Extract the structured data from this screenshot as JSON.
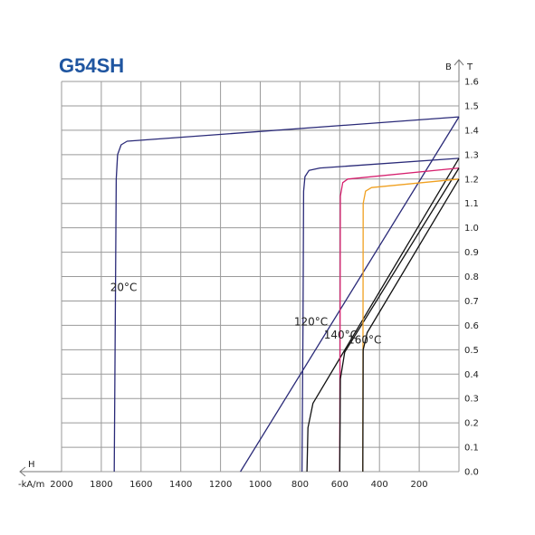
{
  "chart_data": {
    "type": "line",
    "title": "G54SH",
    "xlabel_symbol": "H",
    "xlabel_unit": "-kA/m",
    "ylabel_symbol": "B",
    "ylabel_unit": "T",
    "xlim": [
      2000,
      0
    ],
    "ylim": [
      0,
      1.6
    ],
    "x_ticks": [
      "2000",
      "1800",
      "1600",
      "1400",
      "1200",
      "1000",
      "800",
      "600",
      "400",
      "200"
    ],
    "x_tick_values": [
      2000,
      1800,
      1600,
      1400,
      1200,
      1000,
      800,
      600,
      400,
      200
    ],
    "y_ticks": [
      "0.0",
      "0.1",
      "0.2",
      "0.3",
      "0.4",
      "0.5",
      "0.6",
      "0.7",
      "0.8",
      "0.9",
      "1.0",
      "1.1",
      "1.2",
      "1.3",
      "1.4",
      "1.5",
      "1.6"
    ],
    "grid": true,
    "colors": {
      "title": "#1f55a0",
      "grid": "#9a9a9a",
      "navy": "#2a2a78",
      "magenta": "#d6206e",
      "orange": "#f0a020",
      "black": "#111111"
    },
    "series": [
      {
        "name": "20°C",
        "kind": "B",
        "color": "#2a2a78",
        "points": [
          [
            1735,
            0.0
          ],
          [
            1730,
            0.6
          ],
          [
            1725,
            1.2
          ],
          [
            1718,
            1.3
          ],
          [
            1700,
            1.34
          ],
          [
            1670,
            1.355
          ],
          [
            0,
            1.455
          ]
        ]
      },
      {
        "name": "",
        "kind": "J",
        "color": "#2a2a78",
        "points": [
          [
            1100,
            0.0
          ],
          [
            0,
            1.455
          ]
        ]
      },
      {
        "name": "120°C",
        "kind": "B",
        "color": "#2a2a78",
        "points": [
          [
            790,
            0.0
          ],
          [
            785,
            0.6
          ],
          [
            782,
            1.15
          ],
          [
            775,
            1.21
          ],
          [
            755,
            1.235
          ],
          [
            700,
            1.245
          ],
          [
            0,
            1.285
          ]
        ]
      },
      {
        "name": "",
        "kind": "J",
        "color": "#111111",
        "points": [
          [
            765,
            0.0
          ],
          [
            760,
            0.18
          ],
          [
            735,
            0.28
          ],
          [
            0,
            1.285
          ]
        ]
      },
      {
        "name": "140°C",
        "kind": "B",
        "color": "#d6206e",
        "points": [
          [
            600,
            0.0
          ],
          [
            598,
            0.6
          ],
          [
            597,
            1.13
          ],
          [
            585,
            1.185
          ],
          [
            560,
            1.2
          ],
          [
            0,
            1.245
          ]
        ]
      },
      {
        "name": "",
        "kind": "J",
        "color": "#111111",
        "points": [
          [
            600,
            0.0
          ],
          [
            597,
            0.38
          ],
          [
            575,
            0.49
          ],
          [
            0,
            1.245
          ]
        ]
      },
      {
        "name": "160°C",
        "kind": "B",
        "color": "#f0a020",
        "points": [
          [
            484,
            0.0
          ],
          [
            483,
            0.6
          ],
          [
            482,
            1.1
          ],
          [
            470,
            1.15
          ],
          [
            440,
            1.165
          ],
          [
            0,
            1.2
          ]
        ]
      },
      {
        "name": "",
        "kind": "J",
        "color": "#111111",
        "points": [
          [
            484,
            0.0
          ],
          [
            482,
            0.5
          ],
          [
            462,
            0.57
          ],
          [
            0,
            1.2
          ]
        ]
      }
    ],
    "annotations": [
      {
        "text": "20°C",
        "x": 1755,
        "y": 0.74
      },
      {
        "text": "120°C",
        "x": 830,
        "y": 0.6
      },
      {
        "text": "140°C",
        "x": 680,
        "y": 0.545
      },
      {
        "text": "160°C",
        "x": 560,
        "y": 0.525
      }
    ]
  }
}
